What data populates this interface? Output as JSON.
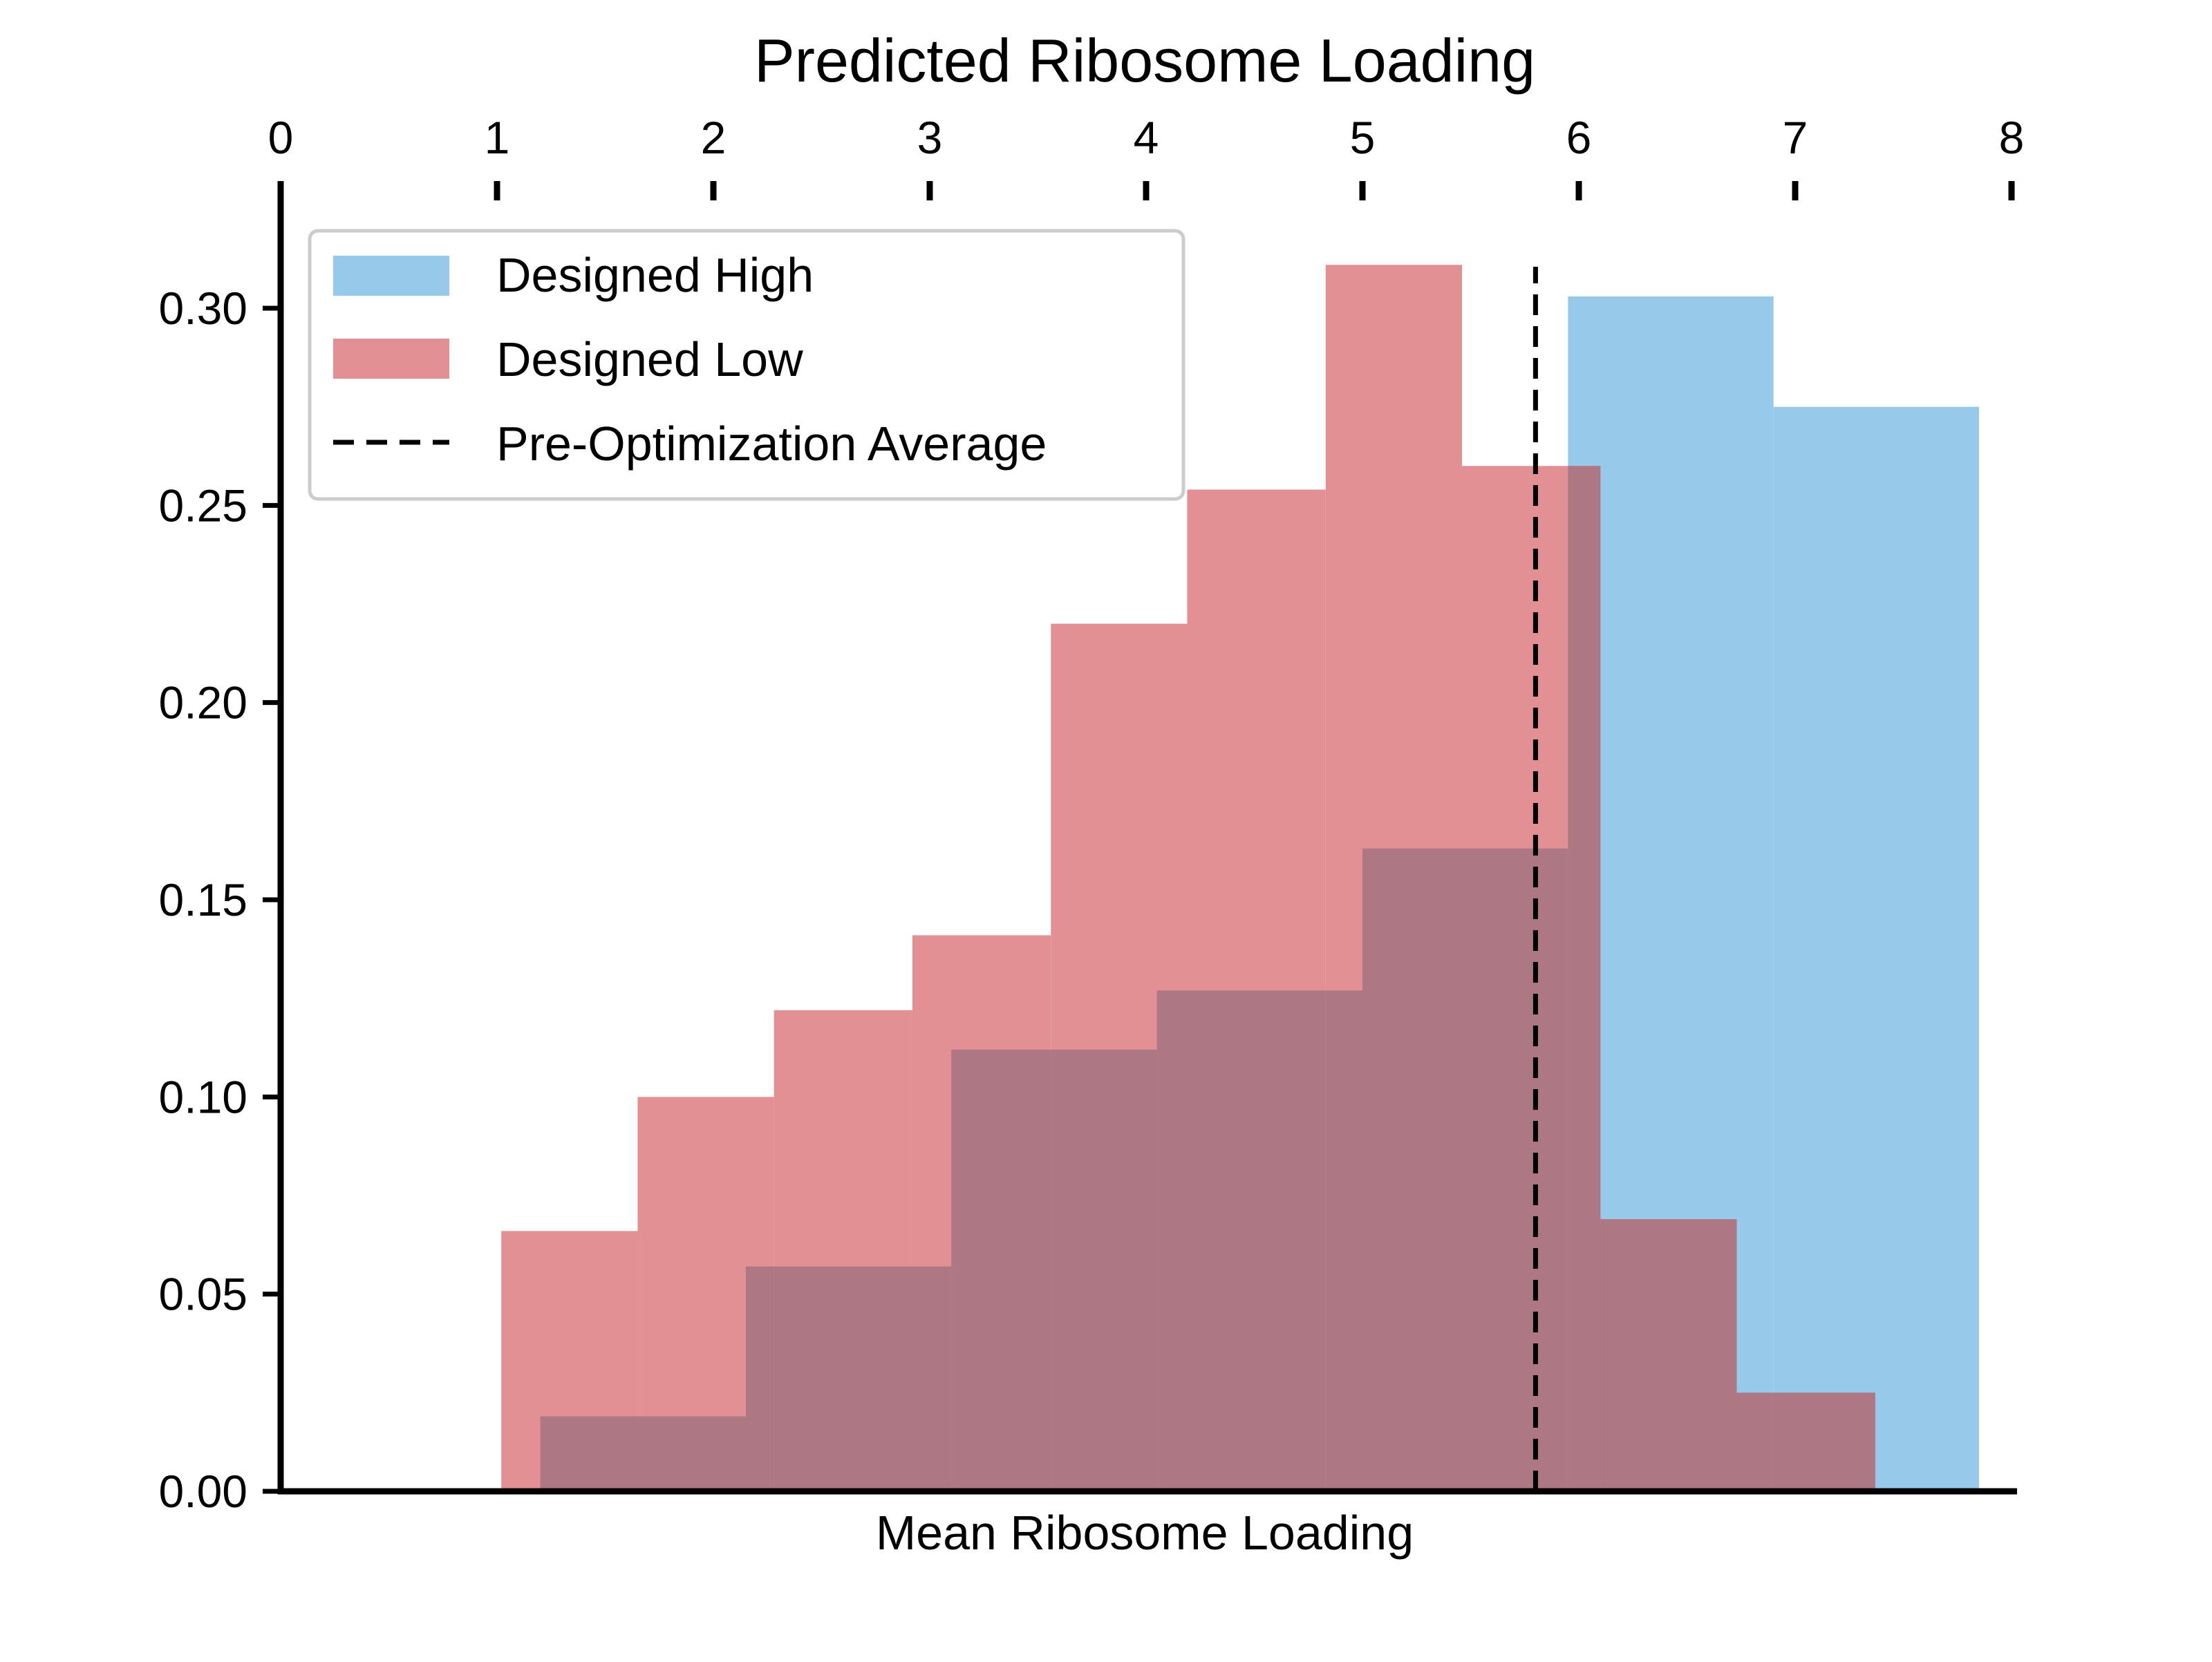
{
  "chart_data": {
    "type": "bar",
    "title": "Predicted Ribosome Loading",
    "xlabel": "Mean Ribosome Loading",
    "ylabel": "",
    "xlim": [
      0,
      8
    ],
    "ylim": [
      0,
      0.33
    ],
    "x_ticks": [
      "0",
      "1",
      "2",
      "3",
      "4",
      "5",
      "6",
      "7",
      "8"
    ],
    "x_axis_position": "top",
    "y_ticks": [
      "0.00",
      "0.05",
      "0.10",
      "0.15",
      "0.20",
      "0.25",
      "0.30"
    ],
    "grid": false,
    "legend_position": "top-left",
    "legend": [
      {
        "label": "Designed High",
        "kind": "patch",
        "color": "#97caea"
      },
      {
        "label": "Designed Low",
        "kind": "patch",
        "color": "#e29094"
      },
      {
        "label": "Pre-Optimization Average",
        "kind": "dashed-line",
        "color": "#000000"
      }
    ],
    "series": [
      {
        "name": "Designed High",
        "color": "#97caea",
        "bins": [
          {
            "x0": 1.2,
            "x1": 2.15,
            "y": 0.019
          },
          {
            "x0": 2.15,
            "x1": 3.1,
            "y": 0.057
          },
          {
            "x0": 3.1,
            "x1": 4.05,
            "y": 0.112
          },
          {
            "x0": 4.05,
            "x1": 5.0,
            "y": 0.127
          },
          {
            "x0": 5.0,
            "x1": 5.95,
            "y": 0.163
          },
          {
            "x0": 5.95,
            "x1": 6.9,
            "y": 0.303
          },
          {
            "x0": 6.9,
            "x1": 7.85,
            "y": 0.275
          }
        ]
      },
      {
        "name": "Designed Low",
        "color": "#e29094",
        "bins": [
          {
            "x0": 1.02,
            "x1": 1.65,
            "y": 0.066
          },
          {
            "x0": 1.65,
            "x1": 2.28,
            "y": 0.1
          },
          {
            "x0": 2.28,
            "x1": 2.92,
            "y": 0.122
          },
          {
            "x0": 2.92,
            "x1": 3.56,
            "y": 0.141
          },
          {
            "x0": 3.56,
            "x1": 4.19,
            "y": 0.22
          },
          {
            "x0": 4.19,
            "x1": 4.83,
            "y": 0.254
          },
          {
            "x0": 4.83,
            "x1": 5.46,
            "y": 0.311
          },
          {
            "x0": 5.46,
            "x1": 6.1,
            "y": 0.26
          },
          {
            "x0": 6.1,
            "x1": 6.73,
            "y": 0.069
          },
          {
            "x0": 6.73,
            "x1": 7.37,
            "y": 0.025
          }
        ]
      }
    ],
    "reference_line": {
      "name": "Pre-Optimization Average",
      "x": 5.8,
      "color": "#000000",
      "style": "dashed"
    }
  }
}
